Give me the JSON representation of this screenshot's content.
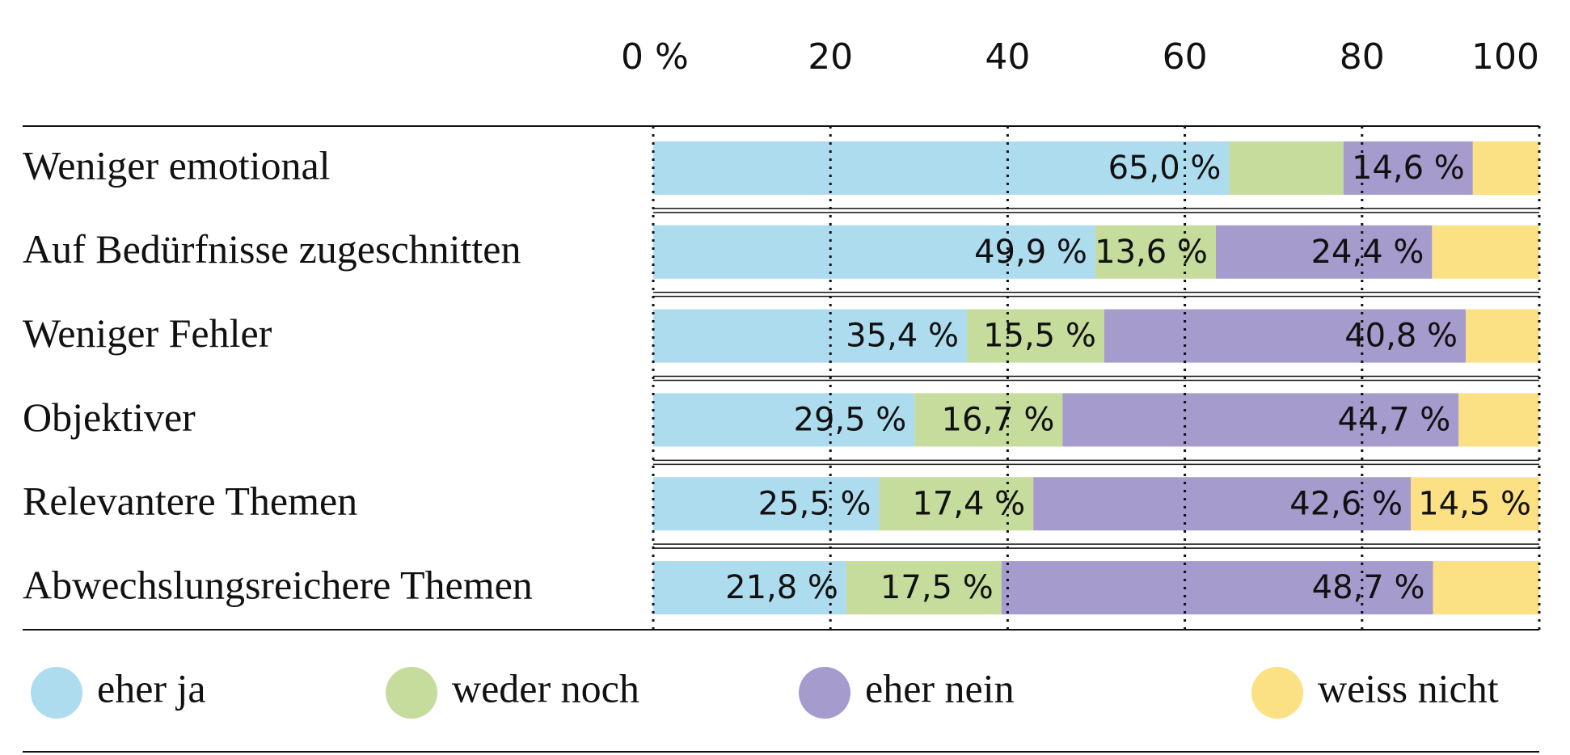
{
  "chart_data": {
    "type": "stacked_bar_horizontal",
    "categories": [
      "Weniger emotional",
      "Auf Bedürfnisse zugeschnitten",
      "Weniger Fehler",
      "Objektiver",
      "Relevantere Themen",
      "Abwechslungsreichere Themen"
    ],
    "xlim": [
      0,
      100
    ],
    "xticks": [
      {
        "value": 0,
        "label": "0 %"
      },
      20,
      40,
      60,
      80,
      100
    ],
    "grid": true,
    "legend": "bottom",
    "series": [
      {
        "name": "eher ja",
        "color": "#aedcef",
        "values": [
          65.0,
          49.9,
          35.4,
          29.5,
          25.5,
          21.8
        ],
        "value_labels": [
          "65,0 %",
          "49,9 %",
          "35,4 %",
          "29,5 %",
          "25,5 %",
          "21,8 %"
        ]
      },
      {
        "name": "weder noch",
        "color": "#c5dc9c",
        "values": [
          12.9,
          13.6,
          15.5,
          16.7,
          17.4,
          17.5
        ],
        "value_labels": [
          null,
          "13,6 %",
          "15,5 %",
          "16,7 %",
          "17,4 %",
          "17,5 %"
        ]
      },
      {
        "name": "eher nein",
        "color": "#a59bcd",
        "values": [
          14.6,
          24.4,
          40.8,
          44.7,
          42.6,
          48.7
        ],
        "value_labels": [
          "14,6 %",
          "24,4 %",
          "40,8 %",
          "44,7 %",
          "42,6 %",
          "48,7 %"
        ]
      },
      {
        "name": "weiss nicht",
        "color": "#fbe084",
        "values": [
          7.5,
          12.1,
          8.3,
          9.1,
          14.5,
          12.0
        ],
        "value_labels": [
          null,
          null,
          null,
          null,
          "14,5 %",
          null
        ]
      }
    ]
  }
}
